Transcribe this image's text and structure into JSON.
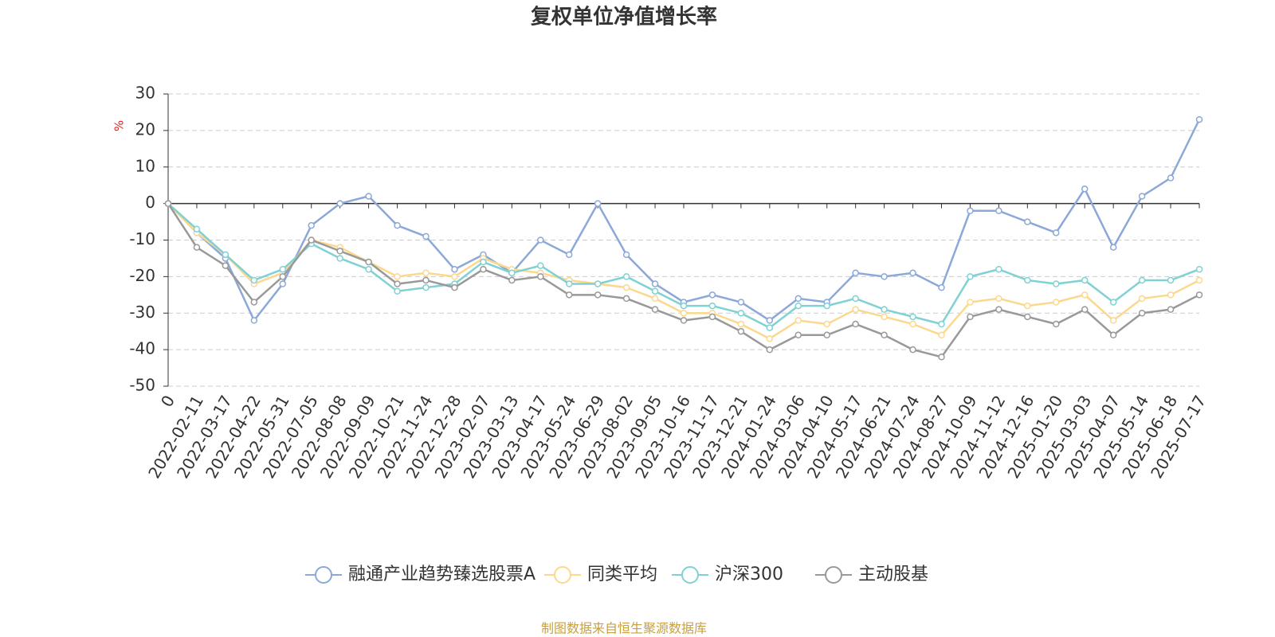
{
  "chart_data": {
    "type": "line",
    "title": "复权单位净值增长率",
    "y_label": "%",
    "source": "制图数据来自恒生聚源数据库",
    "categories": [
      "0",
      "2022-02-11",
      "2022-03-17",
      "2022-04-22",
      "2022-05-31",
      "2022-07-05",
      "2022-08-08",
      "2022-09-09",
      "2022-10-21",
      "2022-11-24",
      "2022-12-28",
      "2023-02-07",
      "2023-03-13",
      "2023-04-17",
      "2023-05-24",
      "2023-06-29",
      "2023-08-02",
      "2023-09-05",
      "2023-10-16",
      "2023-11-17",
      "2023-12-21",
      "2024-01-24",
      "2024-03-06",
      "2024-04-10",
      "2024-05-17",
      "2024-06-21",
      "2024-07-24",
      "2024-08-27",
      "2024-10-09",
      "2024-11-12",
      "2024-12-16",
      "2025-01-20",
      "2025-03-03",
      "2025-04-07",
      "2025-05-14",
      "2025-06-18",
      "2025-07-17"
    ],
    "series": [
      {
        "name": "融通产业趋势臻选股票A",
        "color": "#8ba8d8",
        "values": [
          0,
          -8,
          -15,
          -32,
          -22,
          -6,
          0,
          2,
          -6,
          -9,
          -18,
          -14,
          -19,
          -10,
          -14,
          0,
          -14,
          -22,
          -27,
          -25,
          -27,
          -32,
          -26,
          -27,
          -19,
          -20,
          -19,
          -23,
          -2,
          -2,
          -5,
          -8,
          4,
          -12,
          2,
          7,
          23
        ]
      },
      {
        "name": "同类平均",
        "color": "#fcd88e",
        "values": [
          0,
          -8,
          -14,
          -22,
          -19,
          -10,
          -12,
          -16,
          -20,
          -19,
          -20,
          -15,
          -18,
          -19,
          -21,
          -22,
          -23,
          -26,
          -30,
          -30,
          -33,
          -37,
          -32,
          -33,
          -29,
          -31,
          -33,
          -36,
          -27,
          -26,
          -28,
          -27,
          -25,
          -32,
          -26,
          -25,
          -21
        ]
      },
      {
        "name": "沪深300",
        "color": "#7fd1d3",
        "values": [
          0,
          -7,
          -14,
          -21,
          -18,
          -11,
          -15,
          -18,
          -24,
          -23,
          -22,
          -16,
          -19,
          -17,
          -22,
          -22,
          -20,
          -24,
          -28,
          -28,
          -30,
          -34,
          -28,
          -28,
          -26,
          -29,
          -31,
          -33,
          -20,
          -18,
          -21,
          -22,
          -21,
          -27,
          -21,
          -21,
          -18
        ]
      },
      {
        "name": "主动股基",
        "color": "#999999",
        "values": [
          0,
          -12,
          -17,
          -27,
          -20,
          -10,
          -13,
          -16,
          -22,
          -21,
          -23,
          -18,
          -21,
          -20,
          -25,
          -25,
          -26,
          -29,
          -32,
          -31,
          -35,
          -40,
          -36,
          -36,
          -33,
          -36,
          -40,
          -42,
          -31,
          -29,
          -31,
          -33,
          -29,
          -36,
          -30,
          -29,
          -25
        ]
      }
    ],
    "ylim": [
      -50,
      30
    ],
    "yticks": [
      -50,
      -40,
      -30,
      -20,
      -10,
      0,
      10,
      20,
      30
    ],
    "grid": true
  }
}
